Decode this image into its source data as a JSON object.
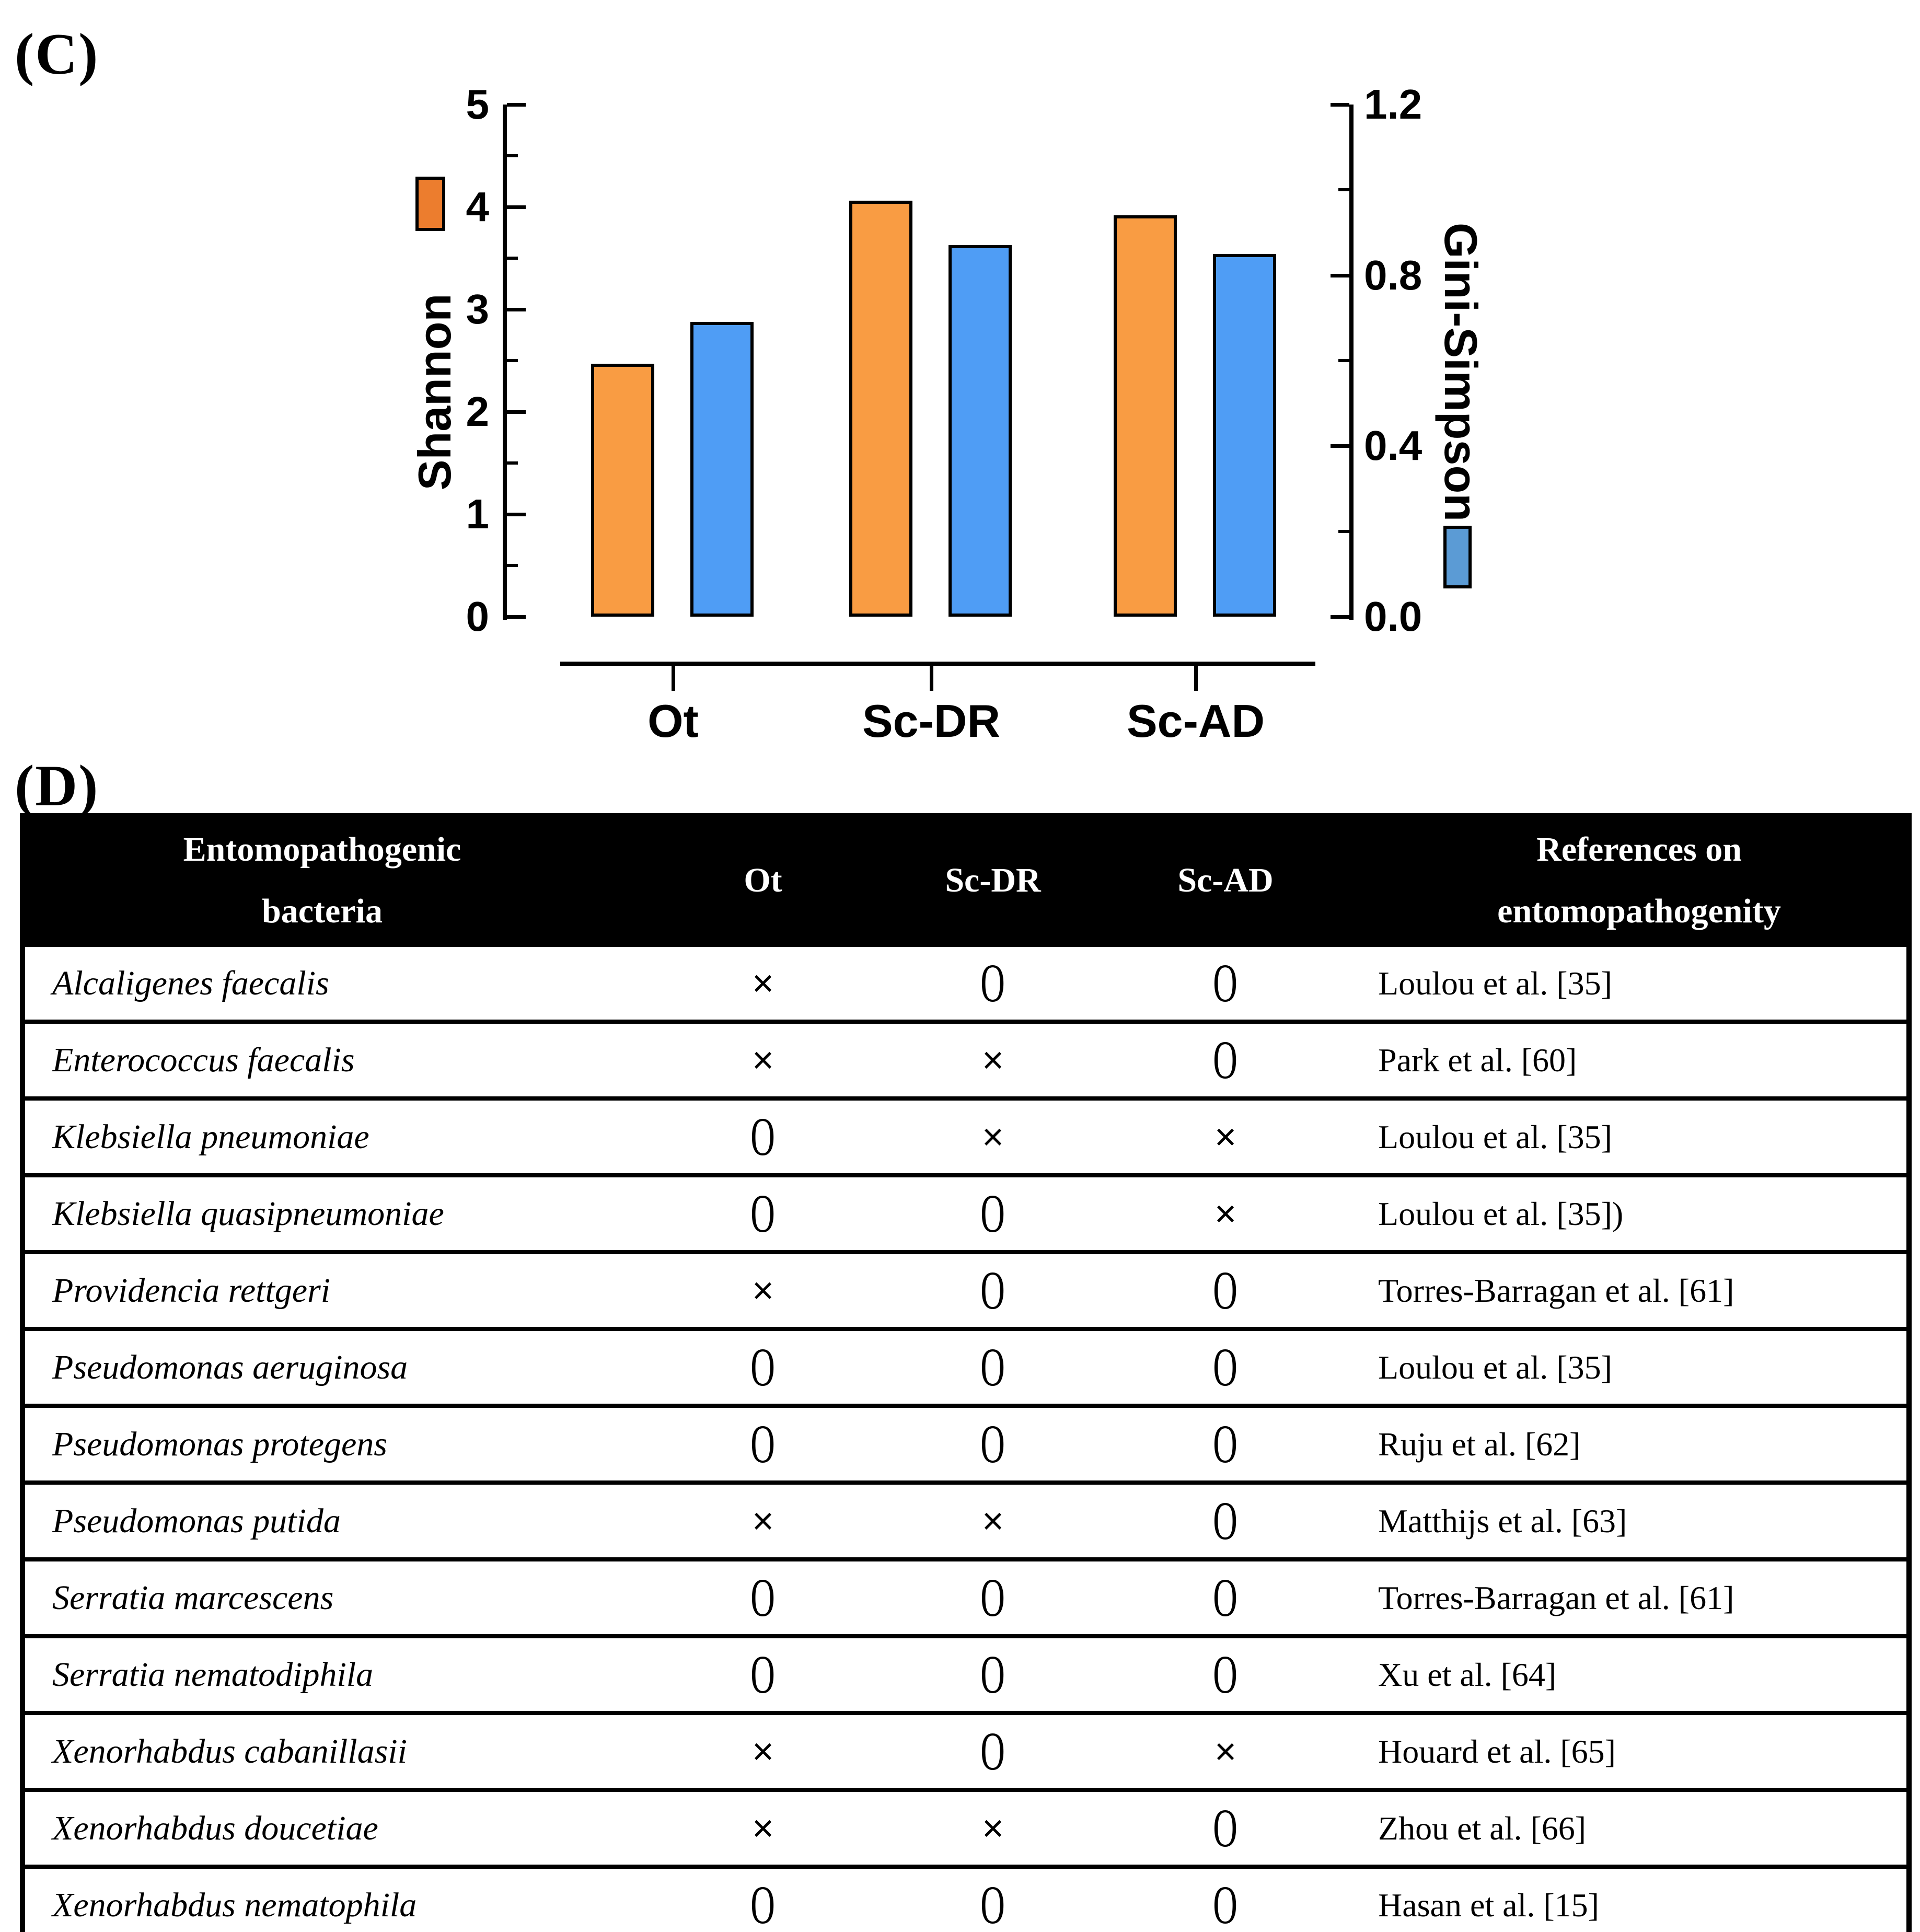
{
  "figure": {
    "panel_c_label": "(C)",
    "panel_d_label": "(D)"
  },
  "chart_data": {
    "type": "bar",
    "categories": [
      "Ot",
      "Sc-DR",
      "Sc-AD"
    ],
    "series": [
      {
        "name": "Shannon",
        "axis": "left",
        "values": [
          2.47,
          4.06,
          3.92
        ],
        "bar_color": "#F99C43",
        "legend_color": "#EC7D2E"
      },
      {
        "name": "Gini-Simpson",
        "axis": "right",
        "values": [
          0.69,
          0.87,
          0.85
        ],
        "bar_color": "#4F9DF5",
        "legend_color": "#5B9BD5"
      }
    ],
    "left_axis": {
      "label": "Shannon",
      "tick_labels": [
        "0",
        "1",
        "2",
        "3",
        "4",
        "5"
      ],
      "range": [
        0,
        5
      ]
    },
    "right_axis": {
      "label": "Gini-Simpson",
      "tick_labels": [
        "0.0",
        "0.4",
        "0.8",
        "1.2"
      ],
      "range": [
        0,
        1.2
      ]
    },
    "grid": false,
    "legend_position": "beside-axis-labels"
  },
  "table": {
    "headers": {
      "bacteria_line1": "Entomopathogenic",
      "bacteria_line2": "bacteria",
      "ot": "Ot",
      "sc_dr": "Sc-DR",
      "sc_ad": "Sc-AD",
      "refs_line1": "References on",
      "refs_line2": "entomopathogenity"
    },
    "rows": [
      {
        "name": "Alcaligenes faecalis",
        "ot": "×",
        "sc_dr": "O",
        "sc_ad": "O",
        "reference": "Loulou et al. [35]"
      },
      {
        "name": "Enterococcus faecalis",
        "ot": "×",
        "sc_dr": "×",
        "sc_ad": "O",
        "reference": "Park et al. [60]"
      },
      {
        "name": "Klebsiella pneumoniae",
        "ot": "O",
        "sc_dr": "×",
        "sc_ad": "×",
        "reference": "Loulou et al. [35]"
      },
      {
        "name": "Klebsiella quasipneumoniae",
        "ot": "O",
        "sc_dr": "O",
        "sc_ad": "×",
        "reference": "Loulou et al. [35])"
      },
      {
        "name": "Providencia rettgeri",
        "ot": "×",
        "sc_dr": "O",
        "sc_ad": "O",
        "reference": "Torres-Barragan et al. [61]"
      },
      {
        "name": "Pseudomonas aeruginosa",
        "ot": "O",
        "sc_dr": "O",
        "sc_ad": "O",
        "reference": "Loulou et al. [35]"
      },
      {
        "name": "Pseudomonas protegens",
        "ot": "O",
        "sc_dr": "O",
        "sc_ad": "O",
        "reference": "Ruju et al. [62]"
      },
      {
        "name": "Pseudomonas putida",
        "ot": "×",
        "sc_dr": "×",
        "sc_ad": "O",
        "reference": "Matthijs et al. [63]"
      },
      {
        "name": "Serratia marcescens",
        "ot": "O",
        "sc_dr": "O",
        "sc_ad": "O",
        "reference": "Torres-Barragan et al. [61]"
      },
      {
        "name": "Serratia nematodiphila",
        "ot": "O",
        "sc_dr": "O",
        "sc_ad": "O",
        "reference": "Xu et al. [64]"
      },
      {
        "name": "Xenorhabdus cabanillasii",
        "ot": "×",
        "sc_dr": "O",
        "sc_ad": "×",
        "reference": "Houard et al. [65]"
      },
      {
        "name": "Xenorhabdus doucetiae",
        "ot": "×",
        "sc_dr": "×",
        "sc_ad": "O",
        "reference": "Zhou et al. [66]"
      },
      {
        "name": "Xenorhabdus nematophila",
        "ot": "O",
        "sc_dr": "O",
        "sc_ad": "O",
        "reference": "Hasan et al. [15]"
      }
    ]
  }
}
